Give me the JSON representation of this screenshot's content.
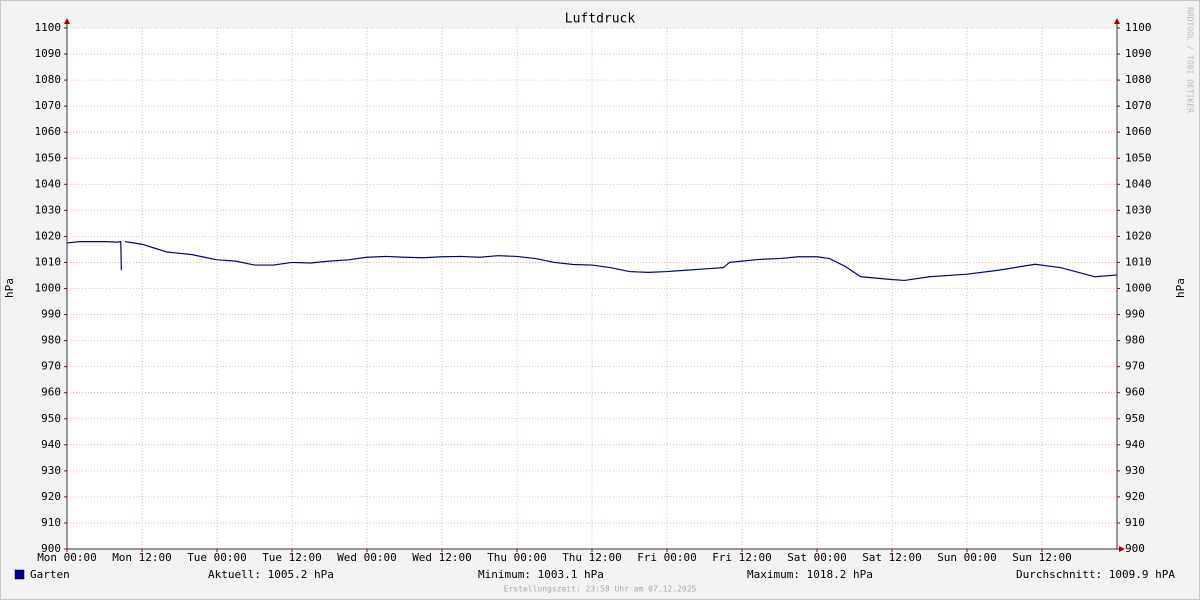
{
  "chart_data": {
    "type": "line",
    "title": "Luftdruck",
    "y_label": "hPa",
    "watermark": "RRDTOOL / TOBI OETIKER",
    "x": [
      0,
      2,
      4,
      6,
      8,
      8.6,
      8.7,
      9,
      9.3,
      12,
      14,
      16,
      18,
      20,
      22,
      24,
      27,
      30,
      33,
      36,
      39,
      42,
      45,
      48,
      51,
      54,
      57,
      60,
      63,
      66,
      69,
      72,
      75,
      78,
      81,
      84,
      87,
      90,
      93,
      96,
      99,
      102,
      105,
      106,
      108,
      111,
      114,
      117,
      120,
      122,
      124.5,
      127,
      131.7,
      134,
      138,
      144,
      149,
      154.9,
      159,
      164.5,
      168
    ],
    "series": [
      {
        "name": "Garten",
        "color": "#00008f",
        "values": [
          1017.5,
          1018,
          1018,
          1018,
          1017.8,
          1018,
          1007,
          null,
          1018,
          1017,
          1015.5,
          1014,
          1013.5,
          1013,
          1012,
          1011,
          1010.5,
          1009,
          1009,
          1010,
          1009.8,
          1010.5,
          1011,
          1012,
          1012.3,
          1012,
          1011.8,
          1012.2,
          1012.3,
          1012,
          1012.6,
          1012.3,
          1011.5,
          1010,
          1009.2,
          1009,
          1008,
          1006.5,
          1006.2,
          1006.5,
          1007,
          1007.5,
          1008,
          1010,
          1010.5,
          1011.2,
          1011.5,
          1012.2,
          1012.2,
          1011.5,
          1008.5,
          1004.5,
          1003.5,
          1003.1,
          1004.5,
          1005.5,
          1007,
          1009.3,
          1008,
          1004.5,
          1005.2
        ]
      }
    ],
    "xlim": [
      0,
      168
    ],
    "xticks": [
      {
        "value": 0,
        "label": "Mon 00:00"
      },
      {
        "value": 12,
        "label": "Mon 12:00"
      },
      {
        "value": 24,
        "label": "Tue 00:00"
      },
      {
        "value": 36,
        "label": "Tue 12:00"
      },
      {
        "value": 48,
        "label": "Wed 00:00"
      },
      {
        "value": 60,
        "label": "Wed 12:00"
      },
      {
        "value": 72,
        "label": "Thu 00:00"
      },
      {
        "value": 84,
        "label": "Thu 12:00"
      },
      {
        "value": 96,
        "label": "Fri 00:00"
      },
      {
        "value": 108,
        "label": "Fri 12:00"
      },
      {
        "value": 120,
        "label": "Sat 00:00"
      },
      {
        "value": 132,
        "label": "Sat 12:00"
      },
      {
        "value": 144,
        "label": "Sun 00:00"
      },
      {
        "value": 156,
        "label": "Sun 12:00"
      }
    ],
    "ylim": [
      900,
      1100
    ],
    "yticks": [
      900,
      910,
      920,
      930,
      940,
      950,
      960,
      970,
      980,
      990,
      1000,
      1010,
      1020,
      1030,
      1040,
      1050,
      1060,
      1070,
      1080,
      1090,
      1100
    ],
    "grid": true,
    "stats": [
      "Aktuell: 1005.2 hPa",
      "Minimum: 1003.1 hPa",
      "Maximum: 1018.2 hPa",
      "Durchschnitt: 1009.9 hPA"
    ],
    "footer": "Erstellungszeit: 23:58 Uhr am 07.12.2025"
  }
}
